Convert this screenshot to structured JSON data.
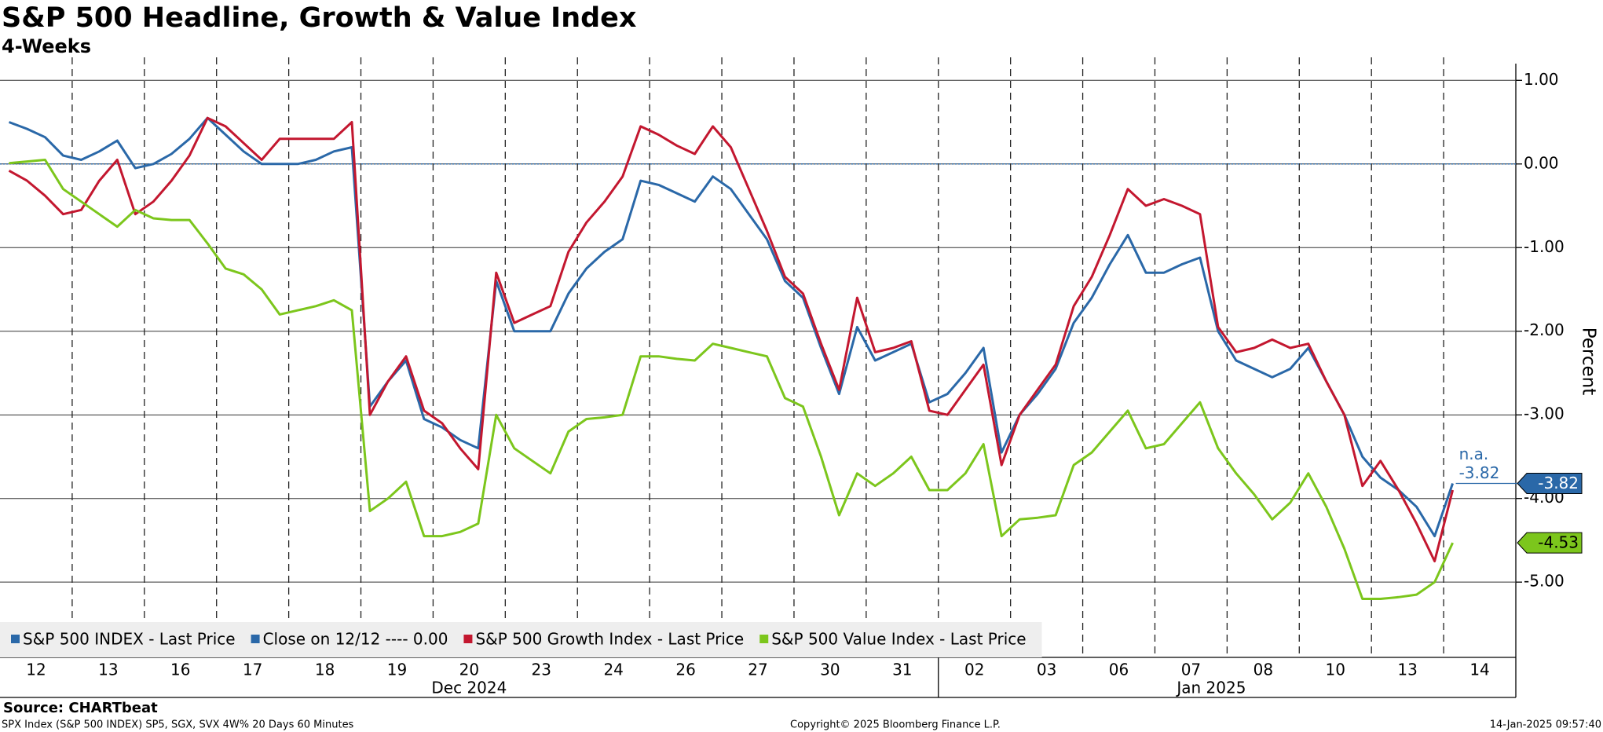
{
  "chart_data": {
    "type": "line",
    "title": "S&P 500 Headline, Growth & Value Index",
    "subtitle": "4-Weeks",
    "y_label": "Percent",
    "source": "Source: CHARTbeat",
    "footer_left": "SPX Index (S&P 500 INDEX) SP5, SGX, SVX 4W% 20 Days 60 Minutes",
    "footer_center": "Copyright© 2025 Bloomberg Finance L.P.",
    "footer_right": "14-Jan-2025 09:57:40",
    "months": [
      "Dec 2024",
      "Jan 2025"
    ],
    "categories": [
      "12",
      null,
      null,
      null,
      "13",
      null,
      null,
      null,
      "16",
      null,
      null,
      null,
      "17",
      null,
      null,
      null,
      "18",
      null,
      null,
      null,
      "19",
      null,
      null,
      null,
      "20",
      null,
      null,
      null,
      "23",
      null,
      null,
      null,
      "24",
      null,
      null,
      null,
      "26",
      null,
      null,
      null,
      "27",
      null,
      null,
      null,
      "30",
      null,
      null,
      null,
      "31",
      null,
      null,
      null,
      "02",
      null,
      null,
      null,
      "03",
      null,
      null,
      null,
      "06",
      null,
      null,
      null,
      "07",
      null,
      null,
      null,
      "08",
      null,
      null,
      null,
      "10",
      null,
      null,
      null,
      "13",
      null,
      null,
      null,
      "14",
      null,
      null,
      null
    ],
    "series": [
      {
        "name": "S&P 500 INDEX - Last Price",
        "color": "#2a68a8",
        "end_label": "-3.82",
        "values": [
          0.5,
          0.42,
          0.32,
          0.1,
          0.05,
          0.15,
          0.28,
          -0.05,
          0,
          0.12,
          0.3,
          0.55,
          0.35,
          0.15,
          0,
          0,
          0,
          0.05,
          0.15,
          0.2,
          -2.9,
          -2.6,
          -2.35,
          -3.05,
          -3.15,
          -3.3,
          -3.4,
          -1.4,
          -2,
          -2,
          -2,
          -1.55,
          -1.25,
          -1.05,
          -0.9,
          -0.2,
          -0.25,
          -0.35,
          -0.45,
          -0.15,
          -0.3,
          -0.6,
          -0.9,
          -1.4,
          -1.6,
          -2.2,
          -2.75,
          -1.95,
          -2.35,
          -2.25,
          -2.15,
          -2.85,
          -2.75,
          -2.5,
          -2.2,
          -3.45,
          -3,
          -2.75,
          -2.45,
          -1.9,
          -1.6,
          -1.2,
          -0.85,
          -1.3,
          -1.3,
          -1.2,
          -1.12,
          -2,
          -2.35,
          -2.45,
          -2.55,
          -2.45,
          -2.2,
          -2.6,
          -3,
          -3.5,
          -3.75,
          -3.9,
          -4.1,
          -4.45,
          -3.82,
          null,
          null,
          null
        ]
      },
      {
        "name": "S&P 500 Growth Index - Last Price",
        "color": "#c3172f",
        "values": [
          -0.08,
          -0.2,
          -0.38,
          -0.6,
          -0.55,
          -0.2,
          0.05,
          -0.6,
          -0.45,
          -0.2,
          0.1,
          0.55,
          0.45,
          0.25,
          0.05,
          0.3,
          0.3,
          0.3,
          0.3,
          0.5,
          -3,
          -2.6,
          -2.3,
          -2.95,
          -3.1,
          -3.4,
          -3.65,
          -1.3,
          -1.9,
          -1.8,
          -1.7,
          -1.05,
          -0.7,
          -0.45,
          -0.15,
          0.45,
          0.35,
          0.22,
          0.12,
          0.45,
          0.2,
          -0.3,
          -0.8,
          -1.35,
          -1.55,
          -2.15,
          -2.7,
          -1.6,
          -2.25,
          -2.2,
          -2.12,
          -2.95,
          -3,
          -2.7,
          -2.4,
          -3.6,
          -3,
          -2.7,
          -2.4,
          -1.7,
          -1.35,
          -0.85,
          -0.3,
          -0.5,
          -0.42,
          -0.5,
          -0.6,
          -1.95,
          -2.25,
          -2.2,
          -2.1,
          -2.2,
          -2.15,
          -2.6,
          -3,
          -3.85,
          -3.55,
          -3.9,
          -4.3,
          -4.75,
          -3.9,
          null,
          null,
          null
        ]
      },
      {
        "name": "S&P 500 Value Index - Last Price",
        "color": "#7cc61c",
        "end_label": "-4.53",
        "values": [
          0.01,
          0.03,
          0.05,
          -0.3,
          -0.45,
          -0.6,
          -0.75,
          -0.55,
          -0.65,
          -0.67,
          -0.67,
          -0.95,
          -1.25,
          -1.32,
          -1.5,
          -1.8,
          -1.75,
          -1.7,
          -1.63,
          -1.75,
          -4.15,
          -4,
          -3.8,
          -4.45,
          -4.45,
          -4.4,
          -4.3,
          -3,
          -3.4,
          -3.55,
          -3.7,
          -3.2,
          -3.05,
          -3.03,
          -3,
          -2.3,
          -2.3,
          -2.33,
          -2.35,
          -2.15,
          -2.2,
          -2.25,
          -2.3,
          -2.8,
          -2.9,
          -3.5,
          -4.2,
          -3.7,
          -3.85,
          -3.7,
          -3.5,
          -3.9,
          -3.9,
          -3.7,
          -3.35,
          -4.45,
          -4.25,
          -4.23,
          -4.2,
          -3.6,
          -3.45,
          -3.2,
          -2.95,
          -3.4,
          -3.35,
          -3.1,
          -2.85,
          -3.4,
          -3.7,
          -3.95,
          -4.25,
          -4.05,
          -3.7,
          -4.1,
          -4.6,
          -5.2,
          -5.2,
          -5.18,
          -5.15,
          -5,
          -4.53,
          null,
          null,
          null
        ]
      }
    ],
    "reference_line": {
      "name": "Close on 12/12 ---- 0.00",
      "value": 0,
      "color": "#2a68a8"
    },
    "annotations": [
      "n.a.",
      "-3.82"
    ],
    "ylim": [
      -5.9,
      1.2
    ],
    "yticks": [
      {
        "value": 1,
        "label": "1.00"
      },
      {
        "value": 0,
        "label": "0.00"
      },
      {
        "value": -1,
        "label": "-1.00"
      },
      {
        "value": -2,
        "label": "-2.00"
      },
      {
        "value": -3,
        "label": "-3.00"
      },
      {
        "value": -4,
        "label": "-4.00"
      },
      {
        "value": -5,
        "label": "-5.00"
      }
    ],
    "grid": true
  }
}
